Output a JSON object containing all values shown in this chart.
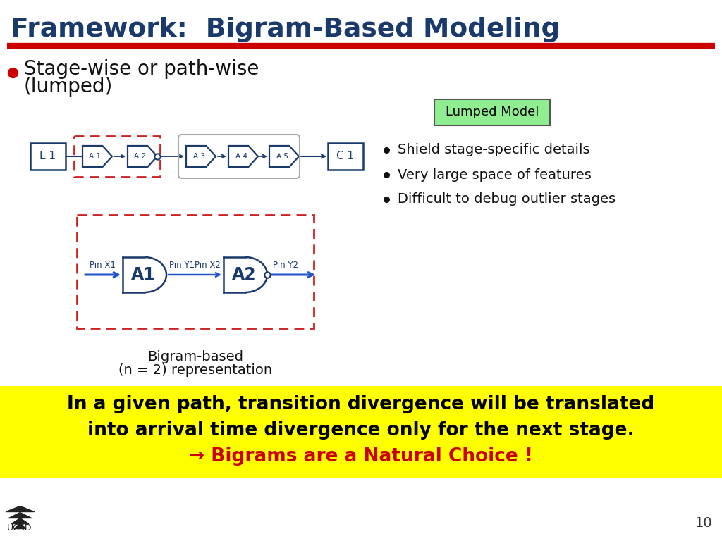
{
  "title": "Framework:  Bigram-Based Modeling",
  "title_color": "#1a3a6b",
  "title_underline_color": "#cc0000",
  "bullet_color": "#cc0000",
  "lumped_label": "Lumped Model",
  "lumped_box_color": "#90ee90",
  "right_bullets": [
    "Shield stage-specific details",
    "Very large space of features",
    "Difficult to debug outlier stages"
  ],
  "bottom_text_line1": "In a given path, transition divergence will be translated",
  "bottom_text_line2": "into arrival time divergence only for the next stage.",
  "bottom_text_line3": "→ Bigrams are a Natural Choice !",
  "bottom_bg_color": "#ffff00",
  "bottom_text_color": "#000000",
  "bottom_arrow_color": "#cc0000",
  "bigram_label_line1": "Bigram-based",
  "bigram_label_line2": "(n = 2) representation",
  "background_color": "#ffffff",
  "slide_number": "10",
  "circuit_color": "#1a3a6b",
  "red_dash_color": "#cc2222",
  "gray_box_color": "#aaaaaa",
  "arrow_blue": "#2255cc"
}
